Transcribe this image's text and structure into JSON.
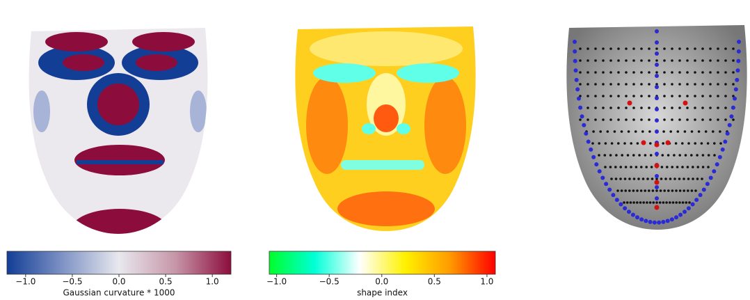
{
  "colorbars": [
    {
      "label": "Gaussian curvature * 1000",
      "lim": [
        -1.2,
        1.2
      ],
      "colors": [
        "#123e96",
        "#7f93c5",
        "#e8e8ee",
        "#c797a8",
        "#8c0d3c"
      ],
      "ticks": [
        {
          "value": -1,
          "label": "−1.0"
        },
        {
          "value": -0.5,
          "label": "−0.5"
        },
        {
          "value": 0,
          "label": "0.0"
        },
        {
          "value": 0.5,
          "label": "0.5"
        },
        {
          "value": 1,
          "label": "1.0"
        }
      ]
    },
    {
      "label": "shape index",
      "lim": [
        -1.07,
        1.08
      ],
      "colors": [
        "#00ff2a",
        "#00ffd8",
        "#ffffff",
        "#fff200",
        "#ff9a00",
        "#ff0000"
      ],
      "ticks": [
        {
          "value": -1,
          "label": "−1.0"
        },
        {
          "value": -0.5,
          "label": "−0.5"
        },
        {
          "value": 0,
          "label": "0.0"
        },
        {
          "value": 0.5,
          "label": "0.5"
        },
        {
          "value": 1,
          "label": "1.0"
        }
      ]
    }
  ]
}
